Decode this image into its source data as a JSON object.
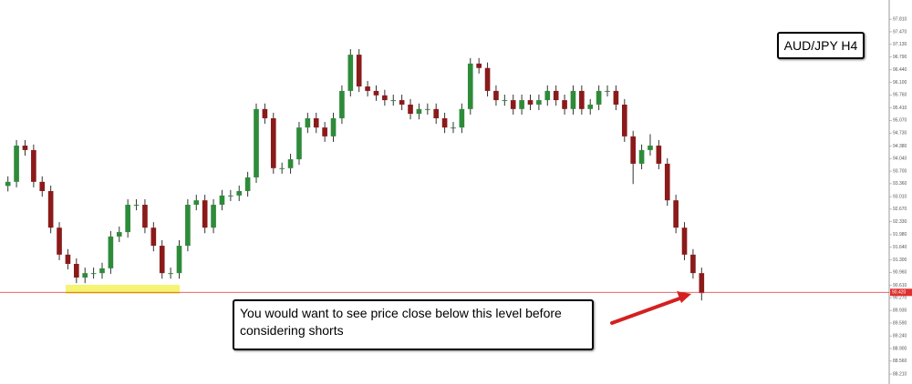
{
  "chart_data": {
    "type": "candlestick",
    "title": "AUD/JPY H4",
    "annotation": "You would want to see price close below this level before considering shorts",
    "level": {
      "value": 90.42,
      "label": "90.420"
    },
    "level_color": "#e03030",
    "up_color": "#2e8b3a",
    "down_color": "#8b1a1a",
    "wick_color": "#333333",
    "ylim": [
      87.94,
      98.33
    ],
    "yticks": [
      {
        "value": 88.21,
        "label": "88.210"
      },
      {
        "value": 88.56,
        "label": "88.560"
      },
      {
        "value": 88.9,
        "label": "88.900"
      },
      {
        "value": 89.24,
        "label": "89.240"
      },
      {
        "value": 89.59,
        "label": "89.590"
      },
      {
        "value": 89.93,
        "label": "89.930"
      },
      {
        "value": 90.27,
        "label": "90.270"
      },
      {
        "value": 90.61,
        "label": "90.610"
      },
      {
        "value": 90.96,
        "label": "90.960"
      },
      {
        "value": 91.3,
        "label": "91.300"
      },
      {
        "value": 91.64,
        "label": "91.640"
      },
      {
        "value": 91.98,
        "label": "91.980"
      },
      {
        "value": 92.33,
        "label": "92.330"
      },
      {
        "value": 92.67,
        "label": "92.670"
      },
      {
        "value": 93.01,
        "label": "93.010"
      },
      {
        "value": 93.36,
        "label": "93.360"
      },
      {
        "value": 93.7,
        "label": "93.700"
      },
      {
        "value": 94.04,
        "label": "94.040"
      },
      {
        "value": 94.38,
        "label": "94.380"
      },
      {
        "value": 94.73,
        "label": "94.730"
      },
      {
        "value": 95.07,
        "label": "95.070"
      },
      {
        "value": 95.41,
        "label": "95.410"
      },
      {
        "value": 95.76,
        "label": "95.760"
      },
      {
        "value": 96.1,
        "label": "96.100"
      },
      {
        "value": 96.44,
        "label": "96.440"
      },
      {
        "value": 96.79,
        "label": "96.790"
      },
      {
        "value": 97.13,
        "label": "97.130"
      },
      {
        "value": 97.47,
        "label": "97.470"
      },
      {
        "value": 97.81,
        "label": "97.810"
      }
    ],
    "open": [
      93.3,
      93.41,
      94.39,
      94.27,
      93.41,
      93.16,
      92.17,
      91.44,
      91.19,
      90.82,
      90.94,
      90.94,
      91.07,
      91.93,
      92.05,
      92.79,
      92.79,
      92.17,
      91.68,
      90.94,
      90.94,
      91.68,
      92.79,
      92.91,
      92.17,
      92.79,
      93.04,
      93.04,
      93.16,
      93.53,
      95.38,
      95.13,
      93.78,
      93.78,
      94.02,
      94.88,
      95.13,
      94.88,
      94.64,
      95.13,
      95.87,
      96.85,
      95.99,
      95.87,
      95.75,
      95.62,
      95.62,
      95.5,
      95.25,
      95.38,
      95.38,
      95.13,
      94.88,
      94.88,
      95.38,
      96.61,
      96.49,
      95.87,
      95.62,
      95.62,
      95.38,
      95.62,
      95.5,
      95.62,
      95.87,
      95.62,
      95.38,
      95.87,
      95.38,
      95.5,
      95.87,
      95.87,
      95.5,
      94.64,
      93.9,
      94.27,
      94.39,
      93.9,
      92.91,
      92.17,
      91.44,
      90.94
    ],
    "high": [
      93.56,
      94.54,
      94.54,
      94.42,
      93.56,
      93.31,
      92.32,
      91.59,
      91.34,
      91.09,
      91.09,
      91.22,
      92.08,
      92.2,
      92.94,
      92.94,
      92.94,
      92.32,
      91.83,
      91.09,
      91.83,
      92.94,
      93.06,
      93.06,
      92.94,
      93.19,
      93.19,
      93.31,
      93.68,
      95.53,
      95.53,
      95.28,
      93.93,
      94.17,
      95.03,
      95.28,
      95.28,
      95.03,
      95.28,
      96.02,
      97.0,
      97.0,
      96.14,
      96.02,
      95.9,
      95.77,
      95.77,
      95.65,
      95.53,
      95.53,
      95.53,
      95.28,
      95.03,
      95.53,
      96.76,
      96.76,
      96.64,
      96.02,
      95.77,
      95.77,
      95.77,
      95.77,
      95.77,
      96.02,
      96.02,
      95.77,
      96.02,
      96.02,
      95.65,
      96.02,
      96.02,
      96.02,
      95.65,
      94.79,
      94.42,
      94.7,
      94.54,
      94.05,
      93.06,
      92.32,
      91.59,
      91.09
    ],
    "low": [
      93.15,
      93.26,
      94.12,
      93.26,
      93.01,
      92.02,
      91.29,
      91.04,
      90.67,
      90.67,
      90.79,
      90.79,
      90.92,
      91.78,
      91.9,
      92.64,
      92.02,
      91.53,
      90.79,
      90.79,
      90.79,
      91.53,
      92.64,
      92.02,
      92.02,
      92.64,
      92.89,
      92.89,
      93.01,
      93.38,
      94.98,
      93.63,
      93.63,
      93.63,
      93.87,
      94.73,
      94.73,
      94.49,
      94.49,
      94.98,
      95.72,
      95.84,
      95.72,
      95.6,
      95.47,
      95.47,
      95.35,
      95.1,
      95.1,
      95.23,
      94.98,
      94.73,
      94.73,
      94.73,
      95.23,
      96.34,
      95.72,
      95.47,
      95.47,
      95.23,
      95.23,
      95.35,
      95.35,
      95.47,
      95.47,
      95.23,
      95.23,
      95.23,
      95.23,
      95.35,
      95.72,
      95.35,
      94.49,
      93.35,
      93.75,
      94.12,
      93.75,
      92.76,
      92.02,
      91.29,
      90.79,
      90.2
    ],
    "close": [
      93.41,
      94.39,
      94.27,
      93.41,
      93.16,
      92.17,
      91.44,
      91.19,
      90.82,
      90.94,
      90.94,
      91.07,
      91.93,
      92.05,
      92.79,
      92.79,
      92.17,
      91.68,
      90.94,
      90.94,
      91.68,
      92.79,
      92.91,
      92.17,
      92.79,
      93.04,
      93.04,
      93.16,
      93.53,
      95.38,
      95.13,
      93.78,
      93.78,
      94.02,
      94.88,
      95.13,
      94.88,
      94.64,
      95.13,
      95.87,
      96.85,
      95.99,
      95.87,
      95.75,
      95.62,
      95.62,
      95.5,
      95.25,
      95.38,
      95.38,
      95.13,
      94.88,
      94.88,
      95.38,
      96.61,
      96.49,
      95.87,
      95.62,
      95.62,
      95.38,
      95.62,
      95.5,
      95.62,
      95.87,
      95.62,
      95.38,
      95.87,
      95.38,
      95.5,
      95.87,
      95.87,
      95.5,
      94.64,
      93.9,
      94.27,
      94.39,
      93.9,
      92.91,
      92.17,
      91.44,
      90.94,
      90.4
    ]
  }
}
